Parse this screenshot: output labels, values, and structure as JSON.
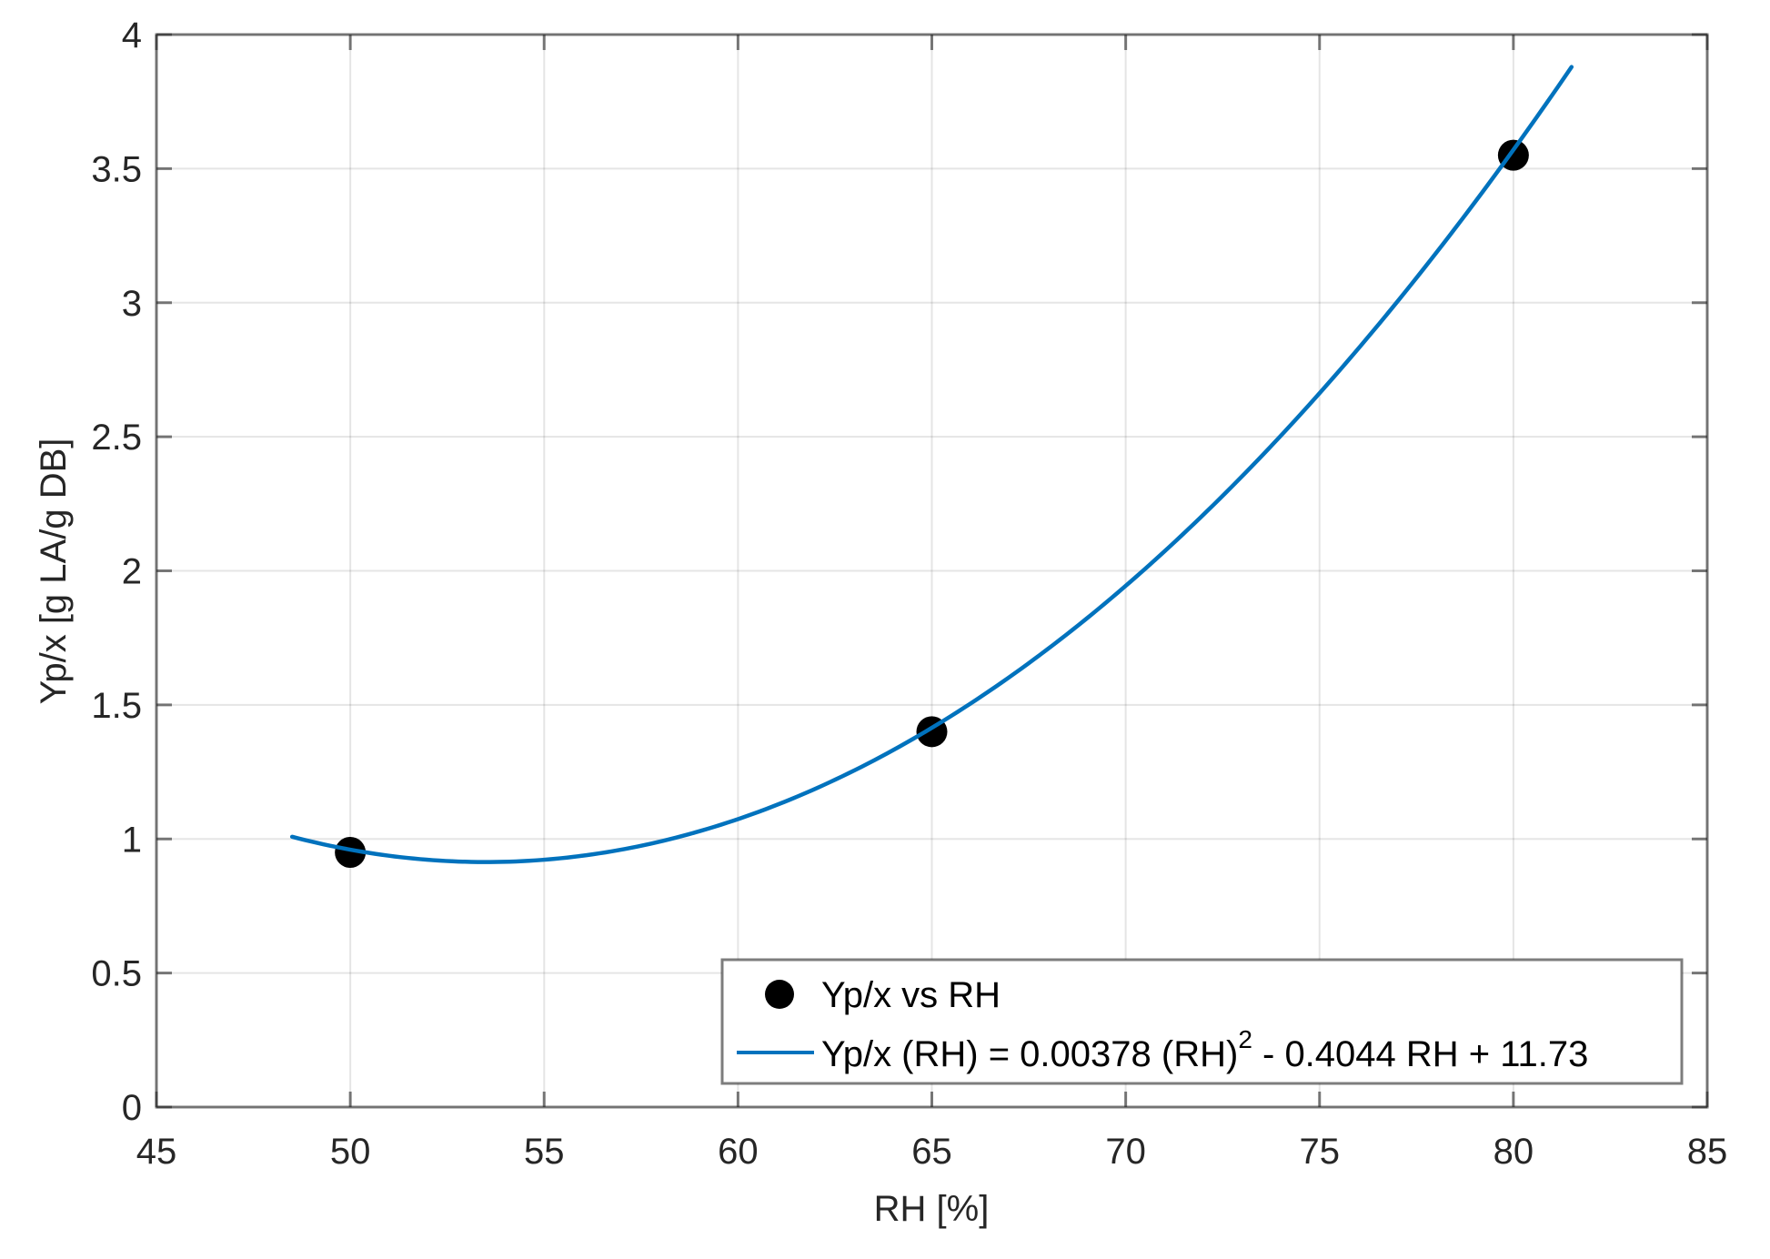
{
  "chart_data": {
    "type": "scatter",
    "title": "",
    "xlabel": "RH [%]",
    "ylabel": "Yp/x [g LA/g DB]",
    "xlim": [
      45,
      85
    ],
    "ylim": [
      0,
      4
    ],
    "xticks": [
      45,
      50,
      55,
      60,
      65,
      70,
      75,
      80,
      85
    ],
    "yticks": [
      0,
      0.5,
      1,
      1.5,
      2,
      2.5,
      3,
      3.5,
      4
    ],
    "xtick_labels": [
      "45",
      "50",
      "55",
      "60",
      "65",
      "70",
      "75",
      "80",
      "85"
    ],
    "ytick_labels": [
      "0",
      "0.5",
      "1",
      "1.5",
      "2",
      "2.5",
      "3",
      "3.5",
      "4"
    ],
    "grid": true,
    "legend_position": "lower right",
    "series": [
      {
        "name": "Yp/x vs RH",
        "type": "scatter",
        "marker": "filled-circle",
        "color": "#000000",
        "x": [
          50,
          65,
          80
        ],
        "y": [
          0.95,
          1.4,
          3.55
        ]
      },
      {
        "name": "Yp/x (RH) = 0.00378 (RH)^2 - 0.4044 RH + 11.73",
        "type": "line",
        "color": "#0072BD",
        "fit": {
          "a": 0.00378,
          "b": -0.4044,
          "c": 11.73
        },
        "x_range": [
          48.5,
          81.5
        ]
      }
    ],
    "legend": [
      {
        "label": "Yp/x vs RH",
        "symbol": "filled-circle"
      },
      {
        "label_main": "Yp/x (RH) = 0.00378 (RH)",
        "label_sup": "2",
        "label_tail": " - 0.4044 RH + 11.73",
        "symbol": "line"
      }
    ]
  }
}
